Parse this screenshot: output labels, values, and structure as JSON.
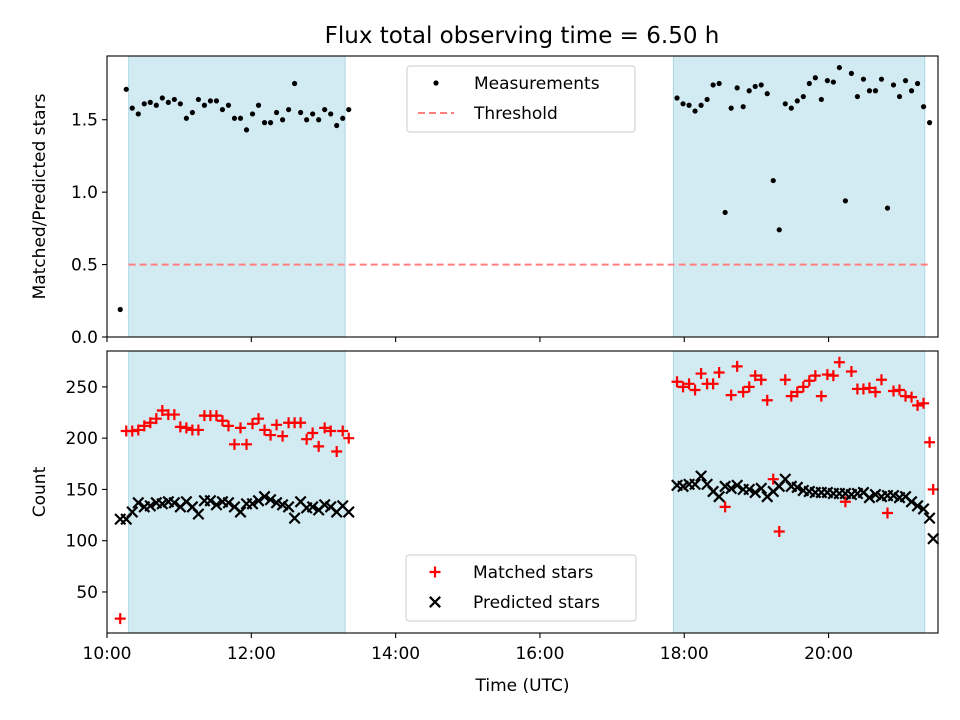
{
  "chart_data": [
    {
      "type": "scatter",
      "title": "Flux total observing time = 6.50 h",
      "xlabel": "",
      "ylabel": "Matched/Predicted stars",
      "xlim": [
        "10:00",
        "21:31"
      ],
      "ylim": [
        0.0,
        1.94
      ],
      "yticks": [
        "0.0",
        "0.5",
        "1.0",
        "1.5"
      ],
      "xtick_values": [
        "10:00",
        "12:00",
        "14:00",
        "16:00",
        "18:00",
        "20:00"
      ],
      "xtick_labels_visible": false,
      "grid": false,
      "legend": "top-center",
      "shaded_intervals": [
        {
          "start": "10:18",
          "end": "13:18"
        },
        {
          "start": "17:51",
          "end": "21:20"
        }
      ],
      "shade_color": "#add8e6",
      "series": [
        {
          "name": "Measurements",
          "color": "#000000",
          "marker": "dot",
          "points": [
            [
              "10:11",
              0.19
            ],
            [
              "10:16",
              1.71
            ],
            [
              "10:21",
              1.58
            ],
            [
              "10:26",
              1.54
            ],
            [
              "10:31",
              1.61
            ],
            [
              "10:36",
              1.62
            ],
            [
              "10:41",
              1.6
            ],
            [
              "10:46",
              1.65
            ],
            [
              "10:51",
              1.62
            ],
            [
              "10:56",
              1.64
            ],
            [
              "11:01",
              1.61
            ],
            [
              "11:06",
              1.51
            ],
            [
              "11:11",
              1.55
            ],
            [
              "11:16",
              1.64
            ],
            [
              "11:21",
              1.6
            ],
            [
              "11:26",
              1.63
            ],
            [
              "11:31",
              1.63
            ],
            [
              "11:36",
              1.57
            ],
            [
              "11:41",
              1.6
            ],
            [
              "11:46",
              1.51
            ],
            [
              "11:51",
              1.51
            ],
            [
              "11:56",
              1.43
            ],
            [
              "12:01",
              1.54
            ],
            [
              "12:06",
              1.6
            ],
            [
              "12:11",
              1.48
            ],
            [
              "12:16",
              1.48
            ],
            [
              "12:21",
              1.55
            ],
            [
              "12:26",
              1.5
            ],
            [
              "12:31",
              1.57
            ],
            [
              "12:36",
              1.75
            ],
            [
              "12:41",
              1.55
            ],
            [
              "12:46",
              1.5
            ],
            [
              "12:51",
              1.54
            ],
            [
              "12:56",
              1.5
            ],
            [
              "13:01",
              1.57
            ],
            [
              "13:06",
              1.54
            ],
            [
              "13:11",
              1.46
            ],
            [
              "13:16",
              1.51
            ],
            [
              "13:21",
              1.57
            ],
            [
              "17:54",
              1.65
            ],
            [
              "17:59",
              1.61
            ],
            [
              "18:04",
              1.6
            ],
            [
              "18:09",
              1.56
            ],
            [
              "18:14",
              1.6
            ],
            [
              "18:19",
              1.64
            ],
            [
              "18:24",
              1.74
            ],
            [
              "18:29",
              1.75
            ],
            [
              "18:34",
              0.86
            ],
            [
              "18:39",
              1.58
            ],
            [
              "18:44",
              1.72
            ],
            [
              "18:49",
              1.59
            ],
            [
              "18:54",
              1.7
            ],
            [
              "18:59",
              1.73
            ],
            [
              "19:04",
              1.74
            ],
            [
              "19:09",
              1.68
            ],
            [
              "19:14",
              1.08
            ],
            [
              "19:19",
              0.74
            ],
            [
              "19:24",
              1.61
            ],
            [
              "19:29",
              1.58
            ],
            [
              "19:34",
              1.63
            ],
            [
              "19:39",
              1.66
            ],
            [
              "19:44",
              1.75
            ],
            [
              "19:49",
              1.79
            ],
            [
              "19:54",
              1.64
            ],
            [
              "19:59",
              1.77
            ],
            [
              "20:04",
              1.76
            ],
            [
              "20:09",
              1.86
            ],
            [
              "20:14",
              0.94
            ],
            [
              "20:19",
              1.82
            ],
            [
              "20:24",
              1.66
            ],
            [
              "20:29",
              1.78
            ],
            [
              "20:34",
              1.7
            ],
            [
              "20:39",
              1.7
            ],
            [
              "20:44",
              1.78
            ],
            [
              "20:49",
              0.89
            ],
            [
              "20:54",
              1.74
            ],
            [
              "20:59",
              1.66
            ],
            [
              "21:04",
              1.77
            ],
            [
              "21:09",
              1.7
            ],
            [
              "21:14",
              1.75
            ],
            [
              "21:19",
              1.59
            ],
            [
              "21:24",
              1.48
            ]
          ]
        },
        {
          "name": "Threshold",
          "color": "#ff7f7f",
          "marker": "dashed-line",
          "points": [
            [
              "10:18",
              0.5
            ],
            [
              "21:24",
              0.5
            ]
          ]
        }
      ]
    },
    {
      "type": "scatter",
      "title": "",
      "xlabel": "Time (UTC)",
      "ylabel": "Count",
      "xlim": [
        "10:00",
        "21:31"
      ],
      "ylim": [
        10,
        285
      ],
      "yticks": [
        "50",
        "100",
        "150",
        "200",
        "250"
      ],
      "xtick_values": [
        "10:00",
        "12:00",
        "14:00",
        "16:00",
        "18:00",
        "20:00"
      ],
      "xtick_labels": [
        "10:00",
        "12:00",
        "14:00",
        "16:00",
        "18:00",
        "20:00"
      ],
      "grid": false,
      "legend": "bottom-center",
      "shaded_intervals": [
        {
          "start": "10:18",
          "end": "13:18"
        },
        {
          "start": "17:51",
          "end": "21:20"
        }
      ],
      "shade_color": "#add8e6",
      "series": [
        {
          "name": "Matched stars",
          "color": "#ff0000",
          "marker": "plus",
          "points": [
            [
              "10:11",
              24
            ],
            [
              "10:16",
              207
            ],
            [
              "10:21",
              207
            ],
            [
              "10:26",
              208
            ],
            [
              "10:31",
              212
            ],
            [
              "10:36",
              215
            ],
            [
              "10:41",
              219
            ],
            [
              "10:46",
              227
            ],
            [
              "10:51",
              223
            ],
            [
              "10:56",
              223
            ],
            [
              "11:01",
              211
            ],
            [
              "11:06",
              210
            ],
            [
              "11:11",
              208
            ],
            [
              "11:16",
              208
            ],
            [
              "11:21",
              222
            ],
            [
              "11:26",
              222
            ],
            [
              "11:31",
              222
            ],
            [
              "11:36",
              217
            ],
            [
              "11:41",
              212
            ],
            [
              "11:46",
              194
            ],
            [
              "11:51",
              210
            ],
            [
              "11:56",
              194
            ],
            [
              "12:01",
              214
            ],
            [
              "12:06",
              219
            ],
            [
              "12:11",
              208
            ],
            [
              "12:16",
              203
            ],
            [
              "12:21",
              213
            ],
            [
              "12:26",
              202
            ],
            [
              "12:31",
              215
            ],
            [
              "12:36",
              215
            ],
            [
              "12:41",
              215
            ],
            [
              "12:46",
              199
            ],
            [
              "12:51",
              205
            ],
            [
              "12:56",
              192
            ],
            [
              "13:01",
              210
            ],
            [
              "13:06",
              207
            ],
            [
              "13:11",
              187
            ],
            [
              "13:16",
              207
            ],
            [
              "13:21",
              200
            ],
            [
              "17:54",
              255
            ],
            [
              "17:59",
              250
            ],
            [
              "18:04",
              253
            ],
            [
              "18:09",
              247
            ],
            [
              "18:14",
              263
            ],
            [
              "18:19",
              253
            ],
            [
              "18:24",
              253
            ],
            [
              "18:29",
              264
            ],
            [
              "18:34",
              133
            ],
            [
              "18:39",
              242
            ],
            [
              "18:44",
              270
            ],
            [
              "18:49",
              245
            ],
            [
              "18:54",
              250
            ],
            [
              "18:59",
              261
            ],
            [
              "19:04",
              257
            ],
            [
              "19:09",
              237
            ],
            [
              "19:14",
              160
            ],
            [
              "19:19",
              109
            ],
            [
              "19:24",
              257
            ],
            [
              "19:29",
              241
            ],
            [
              "19:34",
              245
            ],
            [
              "19:39",
              250
            ],
            [
              "19:44",
              256
            ],
            [
              "19:49",
              261
            ],
            [
              "19:54",
              241
            ],
            [
              "19:59",
              262
            ],
            [
              "20:04",
              261
            ],
            [
              "20:09",
              274
            ],
            [
              "20:14",
              138
            ],
            [
              "20:19",
              265
            ],
            [
              "20:24",
              248
            ],
            [
              "20:29",
              248
            ],
            [
              "20:34",
              249
            ],
            [
              "20:39",
              245
            ],
            [
              "20:44",
              257
            ],
            [
              "20:49",
              127
            ],
            [
              "20:54",
              246
            ],
            [
              "20:59",
              247
            ],
            [
              "21:04",
              241
            ],
            [
              "21:09",
              240
            ],
            [
              "21:14",
              232
            ],
            [
              "21:19",
              234
            ],
            [
              "21:24",
              196
            ],
            [
              "21:27",
              150
            ]
          ]
        },
        {
          "name": "Predicted stars",
          "color": "#000000",
          "marker": "x",
          "points": [
            [
              "10:11",
              121
            ],
            [
              "10:16",
              121
            ],
            [
              "10:21",
              128
            ],
            [
              "10:26",
              137
            ],
            [
              "10:31",
              133
            ],
            [
              "10:36",
              134
            ],
            [
              "10:41",
              137
            ],
            [
              "10:46",
              136
            ],
            [
              "10:51",
              138
            ],
            [
              "10:56",
              137
            ],
            [
              "11:01",
              133
            ],
            [
              "11:06",
              138
            ],
            [
              "11:11",
              133
            ],
            [
              "11:16",
              126
            ],
            [
              "11:21",
              139
            ],
            [
              "11:26",
              139
            ],
            [
              "11:31",
              135
            ],
            [
              "11:36",
              138
            ],
            [
              "11:41",
              137
            ],
            [
              "11:46",
              133
            ],
            [
              "11:51",
              128
            ],
            [
              "11:56",
              136
            ],
            [
              "12:01",
              136
            ],
            [
              "12:06",
              139
            ],
            [
              "12:11",
              143
            ],
            [
              "12:16",
              140
            ],
            [
              "12:21",
              137
            ],
            [
              "12:26",
              135
            ],
            [
              "12:31",
              133
            ],
            [
              "12:36",
              122
            ],
            [
              "12:41",
              138
            ],
            [
              "12:46",
              132
            ],
            [
              "12:51",
              133
            ],
            [
              "12:56",
              130
            ],
            [
              "13:01",
              135
            ],
            [
              "13:06",
              133
            ],
            [
              "13:11",
              128
            ],
            [
              "13:16",
              134
            ],
            [
              "13:21",
              128
            ],
            [
              "17:54",
              154
            ],
            [
              "17:59",
              153
            ],
            [
              "18:04",
              155
            ],
            [
              "18:09",
              155
            ],
            [
              "18:14",
              163
            ],
            [
              "18:19",
              155
            ],
            [
              "18:24",
              148
            ],
            [
              "18:29",
              143
            ],
            [
              "18:34",
              153
            ],
            [
              "18:39",
              151
            ],
            [
              "18:44",
              154
            ],
            [
              "18:49",
              150
            ],
            [
              "18:54",
              150
            ],
            [
              "18:59",
              147
            ],
            [
              "19:04",
              151
            ],
            [
              "19:09",
              143
            ],
            [
              "19:14",
              148
            ],
            [
              "19:19",
              153
            ],
            [
              "19:24",
              160
            ],
            [
              "19:29",
              153
            ],
            [
              "19:34",
              152
            ],
            [
              "19:39",
              149
            ],
            [
              "19:44",
              148
            ],
            [
              "19:49",
              147
            ],
            [
              "19:54",
              147
            ],
            [
              "19:59",
              147
            ],
            [
              "20:04",
              146
            ],
            [
              "20:09",
              146
            ],
            [
              "20:14",
              146
            ],
            [
              "20:19",
              145
            ],
            [
              "20:24",
              146
            ],
            [
              "20:29",
              147
            ],
            [
              "20:34",
              142
            ],
            [
              "20:39",
              145
            ],
            [
              "20:44",
              143
            ],
            [
              "20:49",
              144
            ],
            [
              "20:54",
              144
            ],
            [
              "20:59",
              142
            ],
            [
              "21:04",
              143
            ],
            [
              "21:09",
              138
            ],
            [
              "21:14",
              134
            ],
            [
              "21:19",
              131
            ],
            [
              "21:24",
              122
            ],
            [
              "21:27",
              102
            ]
          ]
        }
      ]
    }
  ]
}
